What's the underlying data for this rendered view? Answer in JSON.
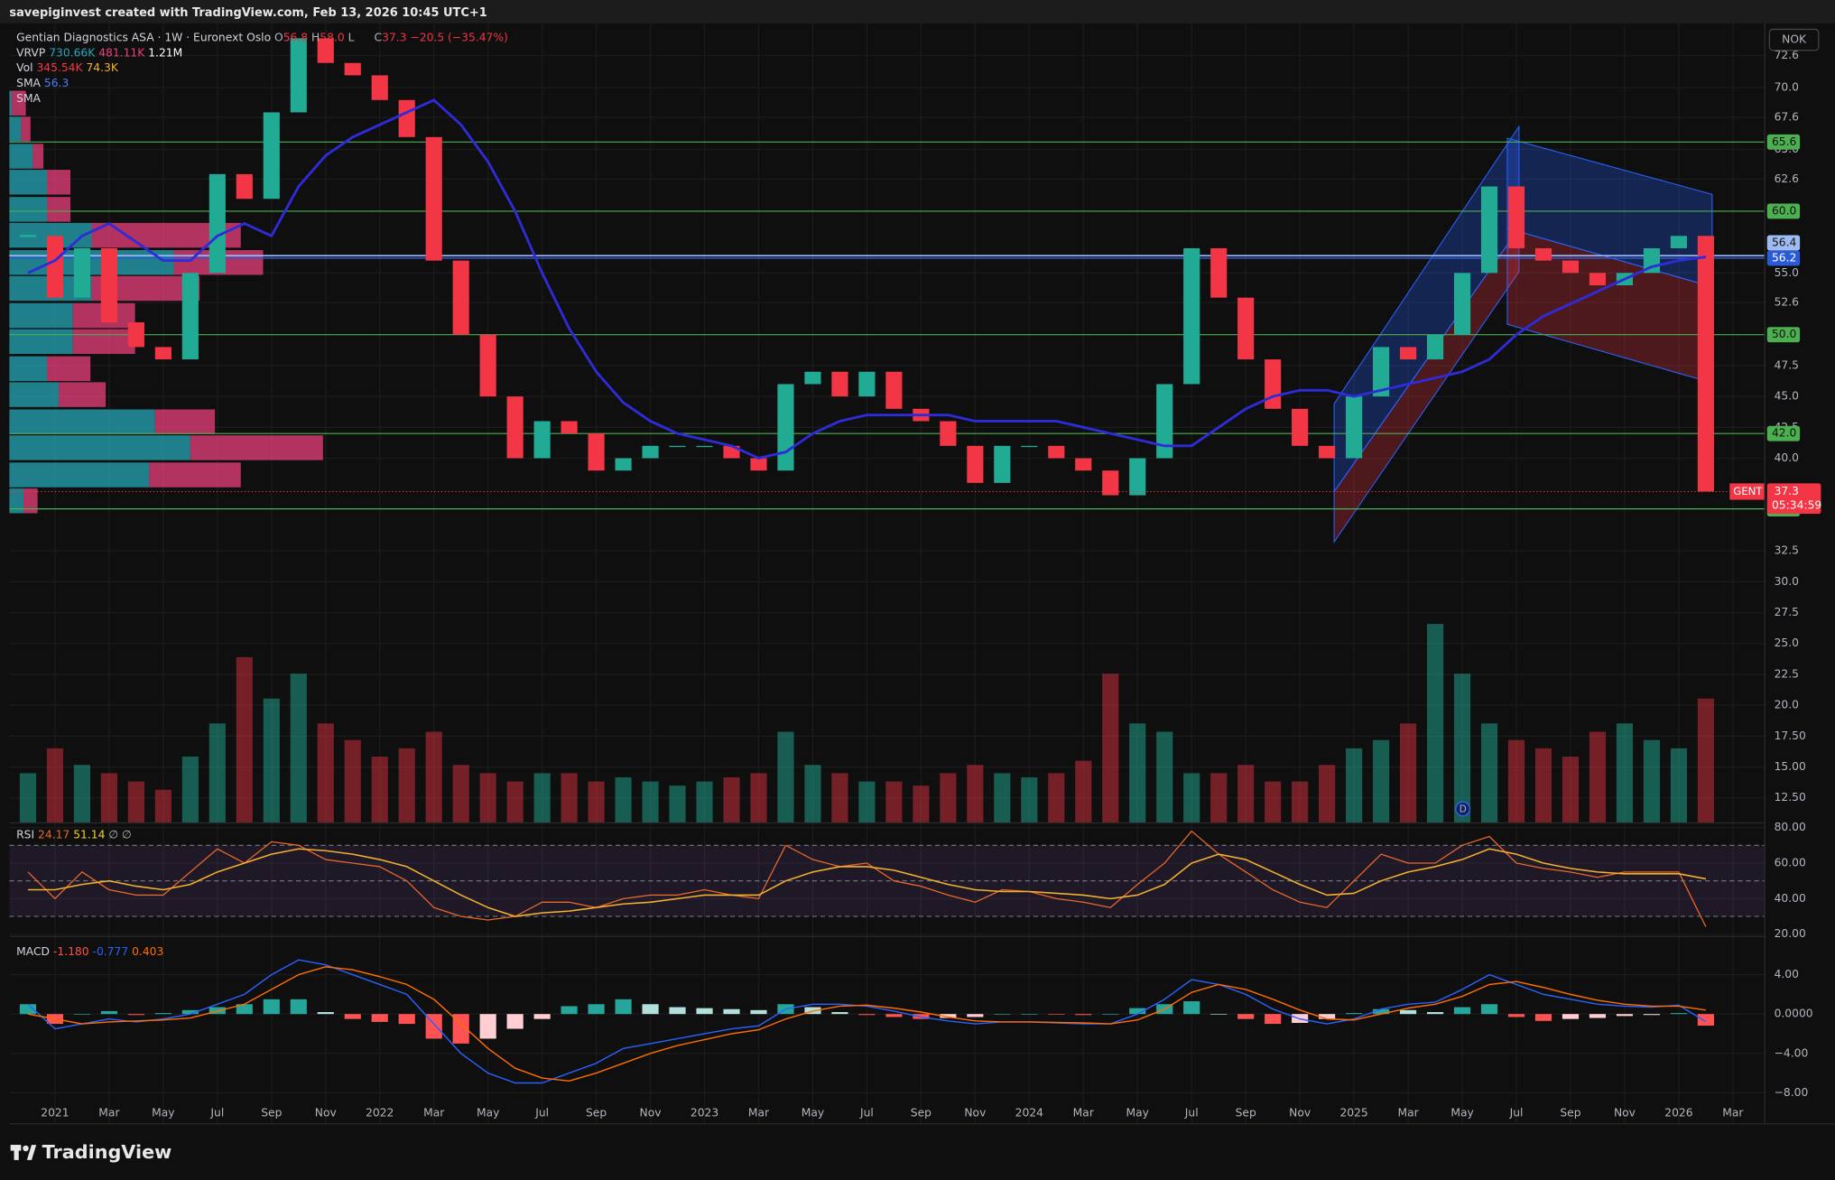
{
  "header": {
    "credit": "savepiginvest created with TradingView.com, Feb 13, 2026 10:45 UTC+1",
    "currency": "NOK",
    "brand": "TradingView"
  },
  "chart_data": [
    {
      "type": "candlestick",
      "title": "Gentian Diagnostics ASA · 1W · Euronext Oslo",
      "legend": {
        "ohlc": [
          "O",
          "56.8",
          "H",
          "58.0",
          "L",
          "C",
          "37.3",
          "−20.5 (−35.47%)"
        ],
        "vrvp": [
          "VRVP",
          "730.66K",
          "481.11K",
          "1.21M"
        ],
        "vol": [
          "Vol",
          "345.54K",
          "74.3K"
        ],
        "sma": [
          [
            "SMA",
            "56.3"
          ],
          [
            "SMA"
          ]
        ]
      },
      "x": [
        "2020-12",
        "2021-01",
        "2021-02",
        "2021-03",
        "2021-04",
        "2021-05",
        "2021-06",
        "2021-07",
        "2021-08",
        "2021-09",
        "2021-10",
        "2021-11",
        "2021-12",
        "2022-01",
        "2022-02",
        "2022-03",
        "2022-04",
        "2022-05",
        "2022-06",
        "2022-07",
        "2022-08",
        "2022-09",
        "2022-10",
        "2022-11",
        "2022-12",
        "2023-01",
        "2023-02",
        "2023-03",
        "2023-04",
        "2023-05",
        "2023-06",
        "2023-07",
        "2023-08",
        "2023-09",
        "2023-10",
        "2023-11",
        "2023-12",
        "2024-01",
        "2024-02",
        "2024-03",
        "2024-04",
        "2024-05",
        "2024-06",
        "2024-07",
        "2024-08",
        "2024-09",
        "2024-10",
        "2024-11",
        "2024-12",
        "2025-01",
        "2025-02",
        "2025-03",
        "2025-04",
        "2025-05",
        "2025-06",
        "2025-07",
        "2025-08",
        "2025-09",
        "2025-10",
        "2025-11",
        "2025-12",
        "2026-01",
        "2026-02"
      ],
      "series": [
        {
          "name": "GENT",
          "color": "#22ab94",
          "down_color": "#f23645",
          "values": [
            58,
            53,
            57,
            51,
            49,
            48,
            55,
            63,
            61,
            68,
            74,
            72,
            71,
            69,
            66,
            56,
            50,
            45,
            40,
            43,
            42,
            39,
            40,
            41,
            41,
            41,
            40,
            39,
            46,
            47,
            45,
            47,
            44,
            43,
            41,
            38,
            41,
            41,
            40,
            39,
            37,
            40,
            46,
            57,
            53,
            48,
            44,
            41,
            40,
            45,
            49,
            48,
            50,
            55,
            62,
            57,
            56,
            55,
            54,
            55,
            57,
            58,
            37.3
          ]
        },
        {
          "name": "SMA",
          "color": "#2e2bd8",
          "values": [
            55,
            56,
            58,
            59,
            57.5,
            56,
            56,
            58,
            59,
            58,
            62,
            64.5,
            66,
            67,
            68,
            69,
            67,
            64,
            60,
            55,
            50.5,
            47,
            44.5,
            43,
            42,
            41.5,
            41,
            40,
            40.5,
            42,
            43,
            43.5,
            43.5,
            43.5,
            43.5,
            43,
            43,
            43,
            43,
            42.5,
            42,
            41.5,
            41,
            41,
            42.5,
            44,
            45,
            45.5,
            45.5,
            45,
            45.5,
            46,
            46.5,
            47,
            48,
            50,
            51.5,
            52.5,
            53.5,
            54.5,
            55.5,
            56,
            56.3
          ]
        }
      ],
      "volume": {
        "up_color": "rgba(34,171,148,0.5)",
        "down_color": "rgba(242,54,69,0.45)",
        "values": [
          60,
          90,
          70,
          60,
          50,
          40,
          80,
          120,
          200,
          150,
          180,
          120,
          100,
          80,
          90,
          110,
          70,
          60,
          50,
          60,
          60,
          50,
          55,
          50,
          45,
          50,
          55,
          60,
          110,
          70,
          60,
          50,
          50,
          45,
          60,
          70,
          60,
          55,
          60,
          75,
          180,
          120,
          110,
          60,
          60,
          70,
          50,
          50,
          70,
          90,
          100,
          120,
          240,
          180,
          120,
          100,
          90,
          80,
          110,
          120,
          100,
          90,
          150
        ]
      },
      "volume_profile": {
        "up_color": "rgba(38,166,182,0.75)",
        "down_color": "rgba(233,64,124,0.75)",
        "prices": [
          36.5,
          38.6,
          40.8,
          42.9,
          45.1,
          47.2,
          49.4,
          51.5,
          53.7,
          55.8,
          58.0,
          60.1,
          62.3,
          64.4,
          66.6,
          68.7
        ],
        "up": [
          12,
          119,
          154,
          124,
          42,
          32,
          54,
          54,
          70,
          140,
          70,
          32,
          32,
          20,
          10,
          2
        ],
        "down": [
          12,
          78,
          113,
          51,
          40,
          37,
          53,
          53,
          92,
          76,
          127,
          20,
          20,
          9,
          8,
          12
        ]
      },
      "levels": {
        "color": "#4caf50",
        "values": [
          65.6,
          {
            "value": 60,
            "label": "60.0"
          },
          {
            "value": 50,
            "label": "50.0"
          },
          {
            "value": 42,
            "label": "42.0"
          },
          35.9
        ]
      },
      "blue_levels": [
        {
          "value": 56.4,
          "color": "#9fbcf2"
        },
        {
          "value": 56.2,
          "color": "#2a5bd7"
        }
      ],
      "last_price": {
        "symbol": "GENT",
        "value": 37.3,
        "countdown": "05:34:59",
        "color": "#f23645"
      },
      "event_marker": "D",
      "ylim": [
        10.47,
        75.2
      ],
      "yticks": [
        72.6,
        {
          "value": 70,
          "label": "70.0"
        },
        67.6,
        {
          "value": 65,
          "label": "65.0"
        },
        62.6,
        {
          "value": 55,
          "label": "55.0"
        },
        52.6,
        47.5,
        {
          "value": 45,
          "label": "45.0"
        },
        42.5,
        {
          "value": 40,
          "label": "40.0"
        },
        32.5,
        {
          "value": 30,
          "label": "30.0"
        },
        27.5,
        {
          "value": 25,
          "label": "25.0"
        },
        22.5,
        {
          "value": 20,
          "label": "20.0"
        },
        {
          "value": 17.5,
          "label": "17.50"
        },
        {
          "value": 15,
          "label": "15.00"
        },
        {
          "value": 12.5,
          "label": "12.50"
        }
      ],
      "xticks": [
        {
          "value": "2021-01",
          "label": "2021"
        },
        {
          "value": "2021-03",
          "label": "Mar"
        },
        {
          "value": "2021-05",
          "label": "May"
        },
        {
          "value": "2021-07",
          "label": "Jul"
        },
        {
          "value": "2021-09",
          "label": "Sep"
        },
        {
          "value": "2021-11",
          "label": "Nov"
        },
        {
          "value": "2022-01",
          "label": "2022"
        },
        {
          "value": "2022-03",
          "label": "Mar"
        },
        {
          "value": "2022-05",
          "label": "May"
        },
        {
          "value": "2022-07",
          "label": "Jul"
        },
        {
          "value": "2022-09",
          "label": "Sep"
        },
        {
          "value": "2022-11",
          "label": "Nov"
        },
        {
          "value": "2023-01",
          "label": "2023"
        },
        {
          "value": "2023-03",
          "label": "Mar"
        },
        {
          "value": "2023-05",
          "label": "May"
        },
        {
          "value": "2023-07",
          "label": "Jul"
        },
        {
          "value": "2023-09",
          "label": "Sep"
        },
        {
          "value": "2023-11",
          "label": "Nov"
        },
        {
          "value": "2024-01",
          "label": "2024"
        },
        {
          "value": "2024-03",
          "label": "Mar"
        },
        {
          "value": "2024-05",
          "label": "May"
        },
        {
          "value": "2024-07",
          "label": "Jul"
        },
        {
          "value": "2024-09",
          "label": "Sep"
        },
        {
          "value": "2024-11",
          "label": "Nov"
        },
        {
          "value": "2025-01",
          "label": "2025"
        },
        {
          "value": "2025-03",
          "label": "Mar"
        },
        {
          "value": "2025-05",
          "label": "May"
        },
        {
          "value": "2025-07",
          "label": "Jul"
        },
        {
          "value": "2025-09",
          "label": "Sep"
        },
        {
          "value": "2025-11",
          "label": "Nov"
        },
        {
          "value": "2026-01",
          "label": "2026"
        },
        {
          "value": "2026-03",
          "label": "Mar"
        }
      ],
      "grid": true
    },
    {
      "type": "rsi",
      "legend": [
        "RSI",
        "24.17",
        "51.14",
        "∅ ∅"
      ],
      "series": [
        {
          "color": "#e8672a",
          "values": [
            55,
            40,
            55,
            45,
            42,
            42,
            55,
            68,
            60,
            72,
            70,
            62,
            60,
            58,
            50,
            35,
            30,
            28,
            30,
            38,
            38,
            35,
            40,
            42,
            42,
            45,
            42,
            40,
            70,
            62,
            58,
            60,
            50,
            47,
            42,
            38,
            45,
            44,
            40,
            38,
            35,
            48,
            60,
            78,
            65,
            55,
            45,
            38,
            35,
            50,
            65,
            60,
            60,
            70,
            75,
            60,
            57,
            55,
            52,
            55,
            55,
            55,
            24.17
          ]
        },
        {
          "color": "#f2b02f",
          "values": [
            45,
            45,
            48,
            50,
            47,
            45,
            48,
            55,
            60,
            65,
            68,
            67,
            65,
            62,
            58,
            50,
            42,
            35,
            30,
            32,
            33,
            35,
            37,
            38,
            40,
            42,
            42,
            42,
            50,
            55,
            58,
            58,
            56,
            52,
            48,
            45,
            44,
            44,
            43,
            42,
            40,
            42,
            48,
            60,
            65,
            62,
            55,
            48,
            42,
            43,
            50,
            55,
            58,
            62,
            68,
            65,
            60,
            57,
            55,
            54,
            54,
            54,
            51.14
          ]
        }
      ],
      "band": [
        30,
        70
      ],
      "band_color": "rgba(126,87,194,0.14)",
      "levels": [
        70,
        50,
        30
      ],
      "ylim": [
        18.7,
        82.6
      ],
      "yticks": [
        {
          "value": 80,
          "label": "80.00"
        },
        {
          "value": 60,
          "label": "60.00"
        },
        {
          "value": 40,
          "label": "40.00"
        },
        {
          "value": 20,
          "label": "20.00"
        }
      ],
      "grid": true
    },
    {
      "type": "macd",
      "legend": [
        "MACD",
        "-1.180",
        "-0.777",
        "0.403"
      ],
      "series": [
        {
          "color": "#2962ff",
          "values": [
            1,
            -1.5,
            -1,
            -0.5,
            -0.8,
            -0.5,
            0,
            1,
            2,
            4,
            5.5,
            5,
            4,
            3,
            2,
            -1,
            -4,
            -6,
            -7,
            -7,
            -6,
            -5,
            -3.5,
            -3,
            -2.5,
            -2,
            -1.5,
            -1.2,
            0.5,
            1,
            1,
            0.8,
            0.3,
            -0.3,
            -0.7,
            -1,
            -0.8,
            -0.8,
            -0.9,
            -1,
            -1,
            0,
            1.5,
            3.5,
            3,
            2,
            0.5,
            -0.5,
            -1,
            -0.5,
            0.5,
            1,
            1.2,
            2.5,
            4,
            3,
            2,
            1.5,
            1,
            0.8,
            0.7,
            0.9,
            -0.777
          ]
        },
        {
          "color": "#ff6d00",
          "values": [
            0,
            -0.5,
            -1,
            -0.8,
            -0.7,
            -0.6,
            -0.4,
            0.3,
            1,
            2.5,
            4,
            4.8,
            4.5,
            3.8,
            3,
            1.5,
            -1,
            -3.5,
            -5.5,
            -6.5,
            -6.8,
            -6,
            -5,
            -4,
            -3.2,
            -2.6,
            -2,
            -1.6,
            -0.5,
            0.3,
            0.8,
            0.9,
            0.6,
            0.2,
            -0.3,
            -0.7,
            -0.8,
            -0.8,
            -0.85,
            -0.9,
            -1,
            -0.6,
            0.5,
            2.2,
            3,
            2.5,
            1.5,
            0.4,
            -0.5,
            -0.6,
            0,
            0.6,
            1,
            1.8,
            3,
            3.3,
            2.7,
            2,
            1.4,
            1,
            0.8,
            0.8,
            0.403
          ]
        }
      ],
      "histogram": {
        "up_color": "#26a69a",
        "up_fade": "#b2dfdb",
        "down_color": "#ff5252",
        "down_fade": "#ffcdd2",
        "values": [
          1,
          -1,
          0,
          0.3,
          -0.1,
          0.1,
          0.4,
          0.7,
          1,
          1.5,
          1.5,
          0.2,
          -0.5,
          -0.8,
          -1,
          -2.5,
          -3,
          -2.5,
          -1.5,
          -0.5,
          0.8,
          1,
          1.5,
          1,
          0.7,
          0.6,
          0.5,
          0.4,
          1,
          0.7,
          0.2,
          -0.1,
          -0.3,
          -0.5,
          -0.4,
          -0.3,
          0,
          0,
          -0.05,
          -0.1,
          0,
          0.6,
          1,
          1.3,
          0,
          -0.5,
          -1,
          -0.9,
          -0.5,
          0.1,
          0.5,
          0.4,
          0.2,
          0.7,
          1,
          -0.3,
          -0.7,
          -0.5,
          -0.4,
          -0.2,
          -0.1,
          0.1,
          -1.18
        ]
      },
      "ylim": [
        -11.15,
        7.88
      ],
      "yticks": [
        {
          "value": 4,
          "label": "4.00"
        },
        {
          "value": 0,
          "label": "0.0000"
        },
        {
          "value": -4,
          "label": "−4.00"
        },
        {
          "value": -8,
          "label": "−8.00"
        }
      ],
      "grid": true
    }
  ]
}
